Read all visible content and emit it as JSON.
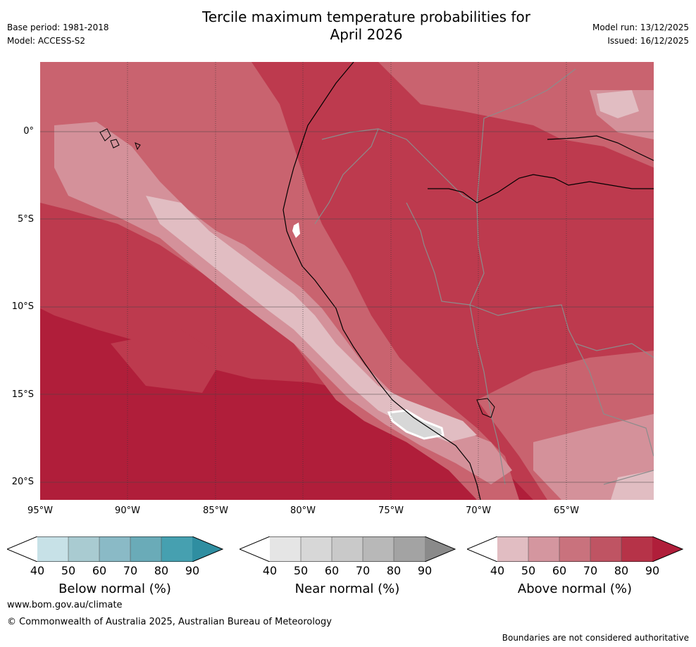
{
  "title": {
    "line1": "Tercile maximum temperature probabilities for",
    "line2": "April 2026"
  },
  "meta": {
    "base_period": "Base period: 1981-2018",
    "model": "Model: ACCESS-S2",
    "model_run": "Model run: 13/12/2025",
    "issued": "Issued: 16/12/2025"
  },
  "map": {
    "latitude_labels": [
      "0°",
      "5°S",
      "10°S",
      "15°S",
      "20°S"
    ],
    "longitude_labels": [
      "95°W",
      "90°W",
      "85°W",
      "80°W",
      "75°W",
      "70°W",
      "65°W"
    ],
    "colors": {
      "ocean_deep": "#b01e3a",
      "ocean_mid": "#bd3a4e",
      "coast_70": "#c9636f",
      "coast_60": "#d4919a",
      "coast_50": "#e1bdc2",
      "near_normal": "#d7d7d7",
      "land_border": "#8c8c8c",
      "grid": "#333333"
    }
  },
  "colorbars": [
    {
      "name": "below",
      "title": "Below normal (%)",
      "labels": [
        "40",
        "50",
        "60",
        "70",
        "80",
        "90"
      ],
      "colors": [
        "#ffffff",
        "#c7e1e7",
        "#a9cbd1",
        "#8abac6",
        "#6aabb8",
        "#46a0b0",
        "#2f8ea1"
      ]
    },
    {
      "name": "near",
      "title": "Near normal (%)",
      "labels": [
        "40",
        "50",
        "60",
        "70",
        "80",
        "90"
      ],
      "colors": [
        "#ffffff",
        "#e5e5e5",
        "#d7d7d7",
        "#c9c9c9",
        "#b8b8b8",
        "#a3a3a3",
        "#8a8a8a"
      ]
    },
    {
      "name": "above",
      "title": "Above normal (%)",
      "labels": [
        "40",
        "50",
        "60",
        "70",
        "80",
        "90"
      ],
      "colors": [
        "#ffffff",
        "#e1bdc2",
        "#d4969f",
        "#c9727d",
        "#bf5463",
        "#b63348",
        "#b01e3a"
      ]
    }
  ],
  "footer": {
    "url": "www.bom.gov.au/climate",
    "copyright": "© Commonwealth of Australia 2025, Australian Bureau of Meteorology",
    "disclaimer": "Boundaries are not considered authoritative"
  }
}
